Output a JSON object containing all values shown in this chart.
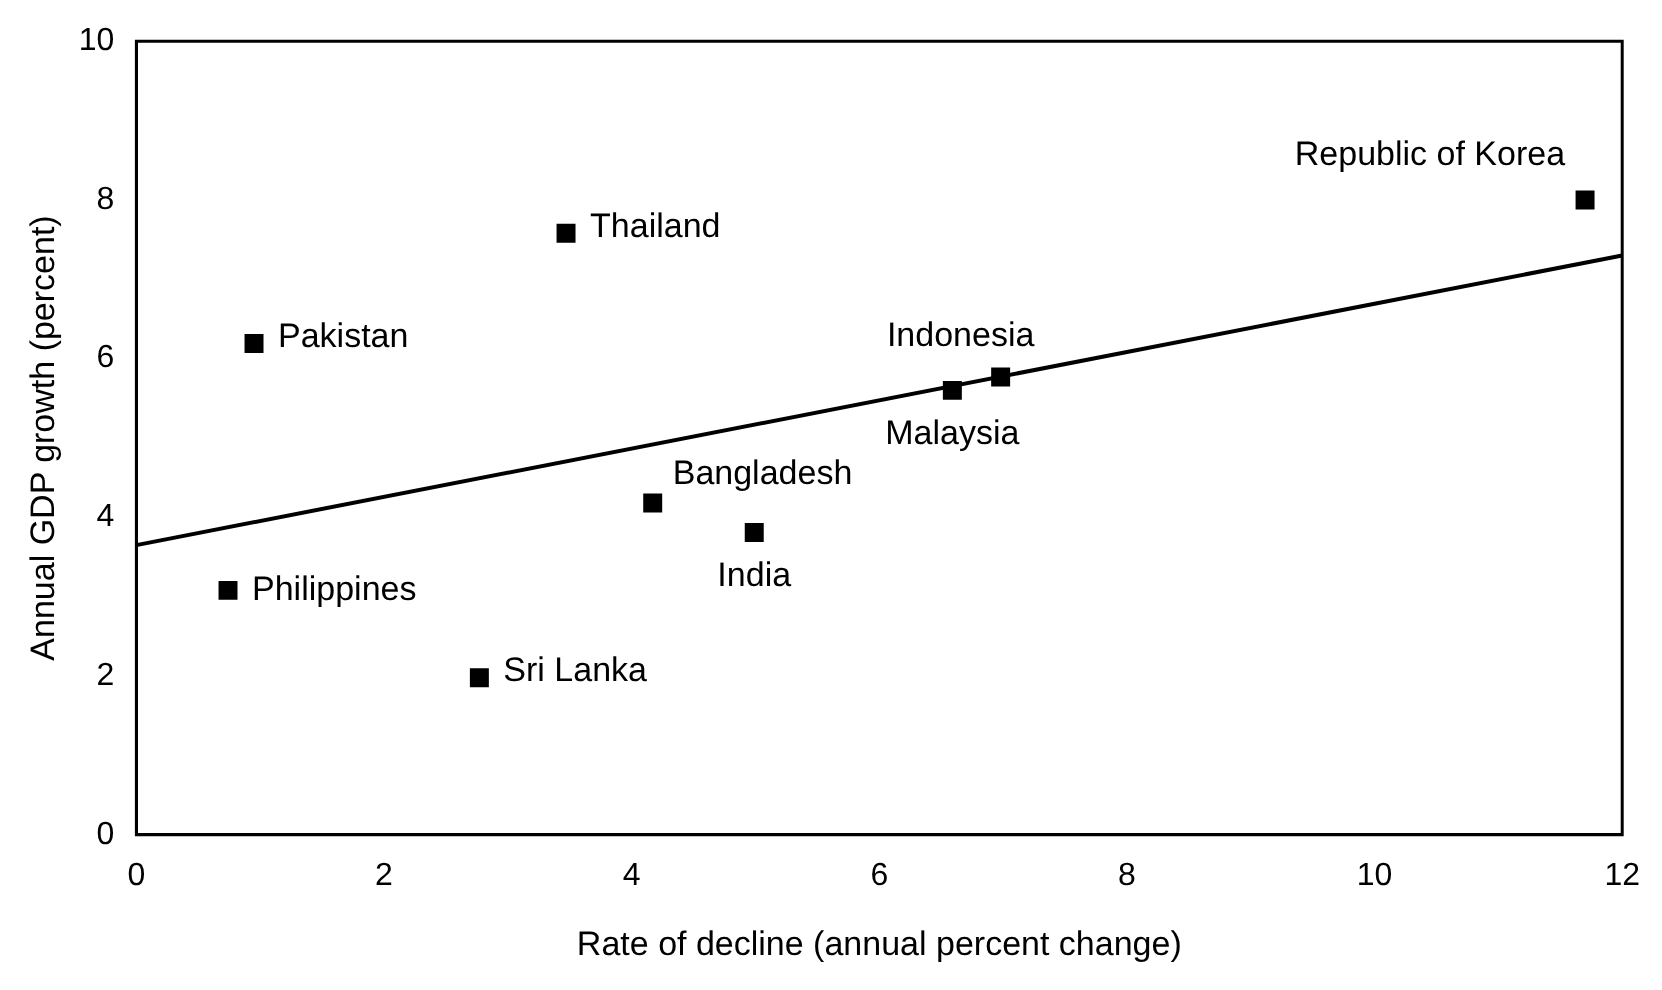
{
  "chart_data": {
    "type": "scatter",
    "xlabel": "Rate of decline (annual percent change)",
    "ylabel": "Annual GDP growth (percent)",
    "xlim": [
      0,
      12
    ],
    "ylim": [
      0,
      10
    ],
    "xticks": [
      0,
      2,
      4,
      6,
      8,
      10,
      12
    ],
    "yticks": [
      0,
      2,
      4,
      6,
      8,
      10
    ],
    "grid": false,
    "legend": false,
    "marker": "square",
    "series": [
      {
        "type": "scatter",
        "color": "#000000",
        "x": [
          11.7,
          3.47,
          0.95,
          6.98,
          6.59,
          4.17,
          4.99,
          0.74,
          2.77
        ],
        "values": [
          8.0,
          7.58,
          6.19,
          5.77,
          5.6,
          4.18,
          3.81,
          3.08,
          1.98
        ]
      },
      {
        "type": "line",
        "color": "#000000",
        "marker": "none",
        "line_style": "solid",
        "x": [
          0,
          12
        ],
        "values": [
          3.65,
          7.3
        ]
      }
    ],
    "annotations": [
      {
        "text": "Republic of Korea",
        "x": 11.7,
        "y": 8.0
      },
      {
        "text": "Thailand",
        "x": 3.47,
        "y": 7.58
      },
      {
        "text": "Pakistan",
        "x": 0.95,
        "y": 6.19
      },
      {
        "text": "Indonesia",
        "x": 6.98,
        "y": 5.77
      },
      {
        "text": "Malaysia",
        "x": 6.59,
        "y": 5.6
      },
      {
        "text": "Bangladesh",
        "x": 4.17,
        "y": 4.18
      },
      {
        "text": "India",
        "x": 4.99,
        "y": 3.81
      },
      {
        "text": "Philippines",
        "x": 0.74,
        "y": 3.08
      },
      {
        "text": "Sri Lanka",
        "x": 2.77,
        "y": 1.98
      }
    ]
  }
}
